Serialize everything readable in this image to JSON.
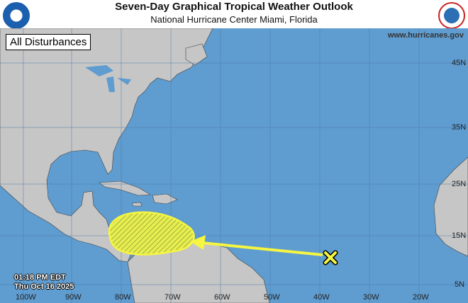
{
  "header": {
    "title": "Seven-Day Graphical Tropical Weather Outlook",
    "subtitle": "National Hurricane Center  Miami, Florida"
  },
  "logos": {
    "left": "NOAA",
    "right": "National Weather Service"
  },
  "badge": "All Disturbances",
  "url": "www.hurricanes.gov",
  "timestamp": {
    "time": "01:18 PM EDT",
    "date": "Thu Oct 16 2025"
  },
  "longitude_labels": [
    "100W",
    "90W",
    "80W",
    "70W",
    "60W",
    "50W",
    "40W",
    "30W",
    "20W"
  ],
  "latitude_labels": [
    "45N",
    "35N",
    "25N",
    "15N",
    "5N"
  ],
  "colors": {
    "ocean": "#5f9ccf",
    "land": "#c6c6c6",
    "outlook_area": "#f0f03c",
    "marker": "#f5f542"
  },
  "disturbance": {
    "marker": "x-icon",
    "area": "hatched yellow outlook area",
    "arrow": "movement arrow west"
  }
}
